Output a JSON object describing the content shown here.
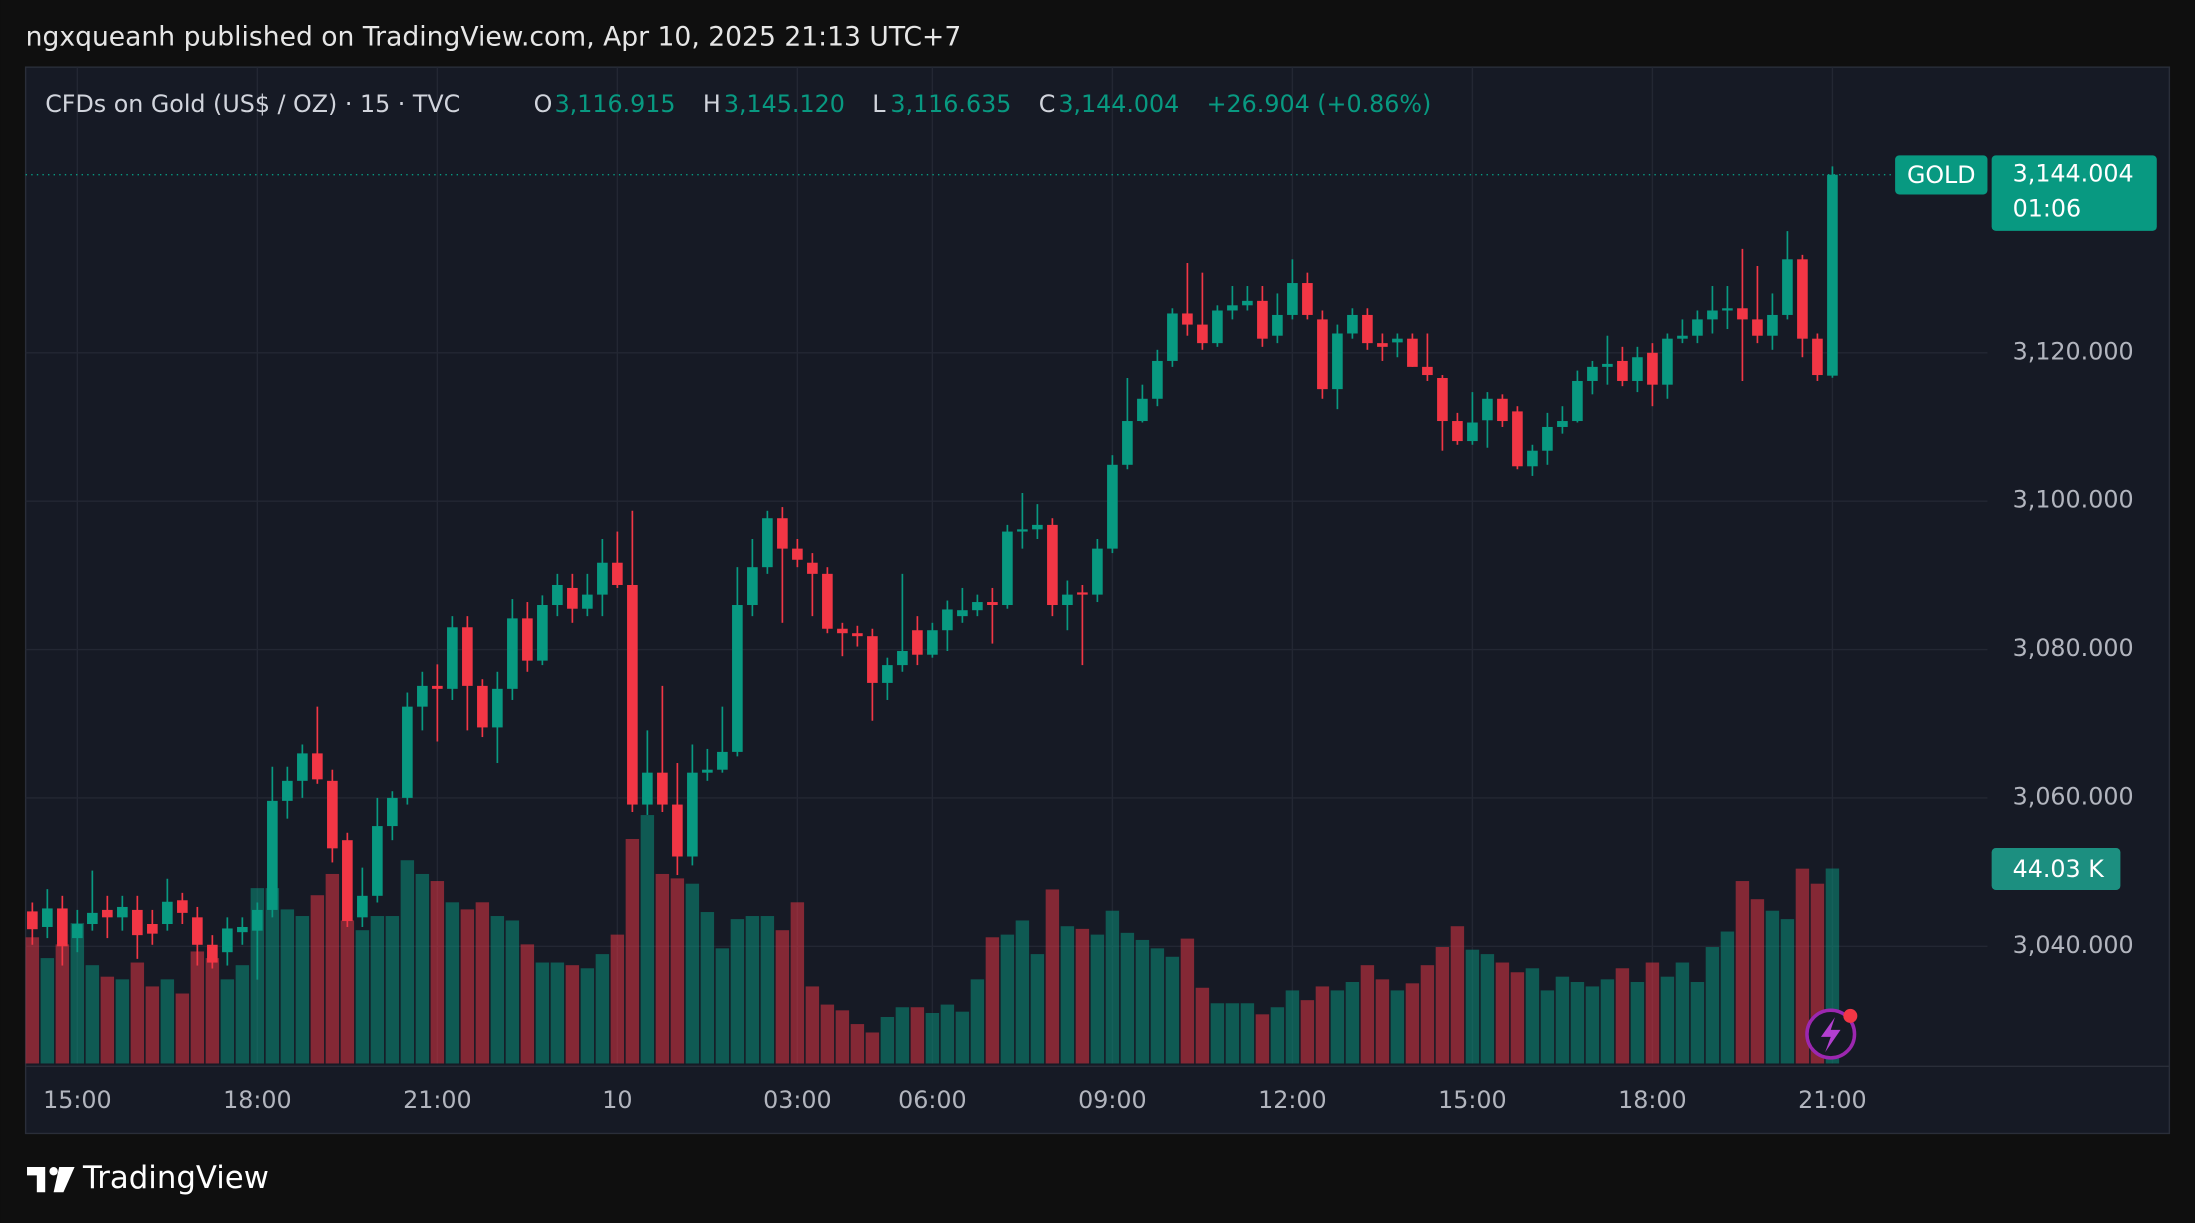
{
  "header": {
    "title": "ngxqueanh published on TradingView.com, Apr 10, 2025 21:13 UTC+7"
  },
  "footer": {
    "brand": "TradingView"
  },
  "chart_data": {
    "type": "candlestick",
    "legend": {
      "symbol": "CFDs on Gold (US$ / OZ) · 15 · TVC",
      "o": "O",
      "o_value": "3,116.915",
      "h": "H",
      "h_value": "3,145.120",
      "l": "L",
      "l_value": "3,116.635",
      "c": "C",
      "c_value": "3,144.004",
      "change": "+26.904 (+0.86%)"
    },
    "symbol_tag": "GOLD",
    "last_price_label": "3,144.004",
    "countdown": "01:06",
    "volume_label": "44.03 K",
    "up_color": "#089981",
    "down_color": "#f23645",
    "grid": true,
    "categories": [
      null,
      null,
      null,
      "15:00",
      null,
      null,
      null,
      null,
      null,
      null,
      null,
      null,
      null,
      null,
      null,
      "18:00",
      null,
      null,
      null,
      null,
      null,
      null,
      null,
      null,
      null,
      null,
      null,
      "21:00",
      null,
      null,
      null,
      null,
      null,
      null,
      null,
      null,
      null,
      null,
      null,
      "10",
      null,
      null,
      null,
      null,
      null,
      null,
      null,
      null,
      null,
      null,
      null,
      "03:00",
      null,
      null,
      null,
      null,
      null,
      null,
      null,
      null,
      "06:00",
      null,
      null,
      null,
      null,
      null,
      null,
      null,
      null,
      null,
      null,
      null,
      "09:00",
      null,
      null,
      null,
      null,
      null,
      null,
      null,
      null,
      null,
      null,
      null,
      "12:00",
      null,
      null,
      null,
      null,
      null,
      null,
      null,
      null,
      null,
      null,
      null,
      "15:00",
      null,
      null,
      null,
      null,
      null,
      null,
      null,
      null,
      null,
      null,
      null,
      "18:00",
      null,
      null,
      null,
      null,
      null,
      null,
      null,
      null,
      null,
      null,
      null,
      "21:00"
    ],
    "open": [
      3044.7,
      3042.6,
      3045.1,
      3041.1,
      3043.0,
      3044.9,
      3043.9,
      3044.9,
      3043.0,
      3043.0,
      3046.2,
      3043.9,
      3040.2,
      3039.2,
      3041.9,
      3042.1,
      3044.9,
      3059.6,
      3062.3,
      3066.0,
      3062.3,
      3054.3,
      3043.9,
      3046.8,
      3056.2,
      3060.0,
      3072.3,
      3075.1,
      3074.7,
      3083.0,
      3075.1,
      3069.5,
      3074.7,
      3084.2,
      3078.5,
      3086.0,
      3088.3,
      3085.5,
      3087.4,
      3091.7,
      3088.7,
      3059.1,
      3063.4,
      3059.1,
      3052.1,
      3063.4,
      3063.8,
      3066.2,
      3086.0,
      3091.1,
      3097.7,
      3093.6,
      3091.7,
      3090.2,
      3082.8,
      3082.2,
      3081.8,
      3075.5,
      3077.9,
      3082.6,
      3079.3,
      3082.6,
      3084.5,
      3085.3,
      3086.4,
      3086.0,
      3095.9,
      3096.2,
      3096.8,
      3086.0,
      3087.7,
      3087.4,
      3093.6,
      3104.9,
      3110.8,
      3113.8,
      3118.9,
      3125.3,
      3123.8,
      3121.3,
      3125.7,
      3126.4,
      3127.0,
      3122.3,
      3125.1,
      3129.4,
      3124.5,
      3115.1,
      3122.6,
      3125.1,
      3121.3,
      3121.4,
      3121.9,
      3118.1,
      3116.6,
      3110.8,
      3108.1,
      3110.9,
      3113.8,
      3112.1,
      3104.7,
      3106.8,
      3110.0,
      3110.8,
      3116.2,
      3118.1,
      3118.9,
      3116.2,
      3120.0,
      3115.7,
      3121.9,
      3122.3,
      3124.5,
      3125.7,
      3126.0,
      3124.5,
      3122.3,
      3125.1,
      3132.6,
      3121.9,
      3116.915
    ],
    "high": [
      3045.9,
      3047.7,
      3046.8,
      3044.9,
      3050.2,
      3046.8,
      3046.8,
      3046.8,
      3044.9,
      3049.1,
      3047.2,
      3045.3,
      3041.5,
      3043.9,
      3043.9,
      3045.9,
      3064.2,
      3064.2,
      3067.2,
      3072.3,
      3063.8,
      3055.3,
      3050.6,
      3060.0,
      3060.9,
      3074.2,
      3077.0,
      3078.0,
      3084.5,
      3084.5,
      3076.0,
      3077.0,
      3086.8,
      3086.4,
      3087.3,
      3090.2,
      3090.2,
      3090.2,
      3094.9,
      3095.9,
      3098.7,
      3069.1,
      3075.1,
      3064.7,
      3067.2,
      3066.6,
      3072.3,
      3091.1,
      3094.9,
      3098.7,
      3099.2,
      3094.9,
      3093.0,
      3091.1,
      3083.6,
      3083.2,
      3082.8,
      3078.9,
      3090.2,
      3084.5,
      3083.6,
      3086.6,
      3088.3,
      3087.4,
      3088.3,
      3096.8,
      3101.1,
      3099.6,
      3097.7,
      3089.3,
      3088.7,
      3094.9,
      3106.2,
      3116.6,
      3115.7,
      3120.4,
      3126.0,
      3132.1,
      3130.8,
      3126.4,
      3129.0,
      3129.0,
      3129.0,
      3128.0,
      3132.6,
      3130.8,
      3125.7,
      3123.8,
      3126.0,
      3126.0,
      3122.6,
      3122.6,
      3122.6,
      3122.6,
      3117.0,
      3111.9,
      3114.7,
      3114.7,
      3114.4,
      3112.8,
      3107.6,
      3111.9,
      3112.8,
      3117.6,
      3118.9,
      3122.3,
      3120.8,
      3120.8,
      3121.3,
      3122.6,
      3124.5,
      3125.7,
      3129.0,
      3129.0,
      3134.0,
      3131.7,
      3128.0,
      3136.4,
      3133.2,
      3122.6,
      3145.12
    ],
    "low": [
      3040.2,
      3041.1,
      3037.4,
      3039.2,
      3042.1,
      3041.1,
      3042.1,
      3038.3,
      3040.2,
      3042.1,
      3043.0,
      3037.4,
      3037.0,
      3037.4,
      3040.2,
      3035.5,
      3043.9,
      3057.2,
      3060.0,
      3061.9,
      3051.3,
      3042.6,
      3042.6,
      3045.9,
      3054.3,
      3059.1,
      3069.1,
      3067.6,
      3073.2,
      3069.1,
      3068.2,
      3064.7,
      3073.2,
      3077.0,
      3077.9,
      3084.5,
      3083.6,
      3084.5,
      3084.5,
      3088.3,
      3058.1,
      3057.7,
      3058.1,
      3049.6,
      3050.9,
      3062.3,
      3063.4,
      3065.6,
      3084.5,
      3090.2,
      3083.6,
      3091.1,
      3084.5,
      3082.2,
      3079.1,
      3080.4,
      3070.4,
      3073.2,
      3077.0,
      3077.9,
      3078.9,
      3079.8,
      3083.6,
      3084.5,
      3080.8,
      3085.5,
      3093.6,
      3094.9,
      3084.5,
      3082.6,
      3077.9,
      3086.4,
      3093.0,
      3104.3,
      3110.6,
      3112.8,
      3118.1,
      3122.3,
      3120.4,
      3120.8,
      3124.5,
      3125.7,
      3120.8,
      3121.3,
      3124.5,
      3124.5,
      3113.8,
      3112.4,
      3121.9,
      3120.4,
      3118.9,
      3119.4,
      3118.1,
      3116.2,
      3106.8,
      3107.6,
      3107.6,
      3107.2,
      3110.0,
      3104.3,
      3103.4,
      3104.9,
      3109.1,
      3110.6,
      3114.4,
      3115.7,
      3115.5,
      3114.7,
      3112.8,
      3113.8,
      3121.3,
      3121.3,
      3122.6,
      3123.2,
      3116.2,
      3121.3,
      3120.4,
      3124.5,
      3119.4,
      3116.2,
      3116.635
    ],
    "close": [
      3042.3,
      3045.1,
      3040.0,
      3043.0,
      3044.5,
      3043.9,
      3045.3,
      3041.5,
      3041.7,
      3046.0,
      3044.5,
      3040.2,
      3037.8,
      3042.4,
      3042.6,
      3044.9,
      3059.6,
      3062.3,
      3066.0,
      3062.5,
      3053.2,
      3043.4,
      3046.8,
      3056.2,
      3060.0,
      3072.3,
      3075.1,
      3074.7,
      3083.0,
      3075.1,
      3069.5,
      3074.7,
      3084.2,
      3078.5,
      3086.0,
      3088.7,
      3085.5,
      3087.4,
      3091.7,
      3088.7,
      3059.1,
      3063.4,
      3059.1,
      3052.1,
      3063.4,
      3063.8,
      3066.2,
      3086.0,
      3091.1,
      3097.7,
      3093.6,
      3092.1,
      3090.2,
      3082.8,
      3082.2,
      3081.8,
      3075.5,
      3077.9,
      3079.8,
      3079.3,
      3082.6,
      3085.4,
      3085.3,
      3086.4,
      3086.0,
      3095.9,
      3096.2,
      3096.8,
      3086.0,
      3087.4,
      3087.4,
      3093.6,
      3104.9,
      3110.8,
      3113.8,
      3118.9,
      3125.3,
      3123.8,
      3121.3,
      3125.7,
      3126.4,
      3127.0,
      3121.9,
      3125.1,
      3129.4,
      3125.1,
      3115.1,
      3122.6,
      3125.1,
      3121.3,
      3120.8,
      3121.9,
      3118.1,
      3117.0,
      3110.8,
      3108.1,
      3110.6,
      3113.8,
      3110.8,
      3104.7,
      3106.8,
      3110.0,
      3110.8,
      3116.2,
      3118.1,
      3118.5,
      3116.2,
      3119.4,
      3115.7,
      3121.9,
      3122.3,
      3124.5,
      3125.7,
      3126.0,
      3124.5,
      3122.3,
      3125.1,
      3132.6,
      3121.9,
      3117.0,
      3144.004
    ],
    "volume": [
      28.5,
      23.8,
      26.9,
      31.7,
      22.2,
      19.6,
      19.0,
      22.8,
      17.4,
      19.0,
      15.8,
      25.3,
      23.8,
      19.0,
      22.2,
      39.6,
      39.6,
      34.8,
      33.3,
      38.0,
      42.8,
      32.3,
      30.1,
      33.3,
      33.3,
      45.9,
      42.8,
      41.2,
      36.4,
      34.8,
      36.4,
      33.3,
      32.3,
      26.9,
      22.8,
      22.8,
      22.2,
      21.5,
      24.7,
      29.1,
      50.7,
      56.1,
      42.8,
      41.8,
      40.6,
      34.2,
      26.0,
      32.6,
      33.3,
      33.3,
      30.1,
      36.4,
      17.4,
      13.3,
      12.0,
      8.9,
      7.0,
      10.5,
      12.7,
      12.7,
      11.4,
      13.3,
      11.7,
      19.0,
      28.5,
      29.1,
      32.3,
      24.7,
      39.3,
      31.0,
      30.4,
      29.1,
      34.5,
      29.5,
      27.9,
      26.0,
      24.1,
      28.2,
      17.1,
      13.6,
      13.6,
      13.6,
      11.1,
      12.7,
      16.5,
      14.3,
      17.4,
      16.5,
      18.4,
      22.2,
      19.0,
      16.5,
      18.1,
      22.2,
      26.3,
      31.0,
      25.7,
      24.7,
      22.8,
      20.6,
      21.5,
      16.5,
      19.6,
      18.4,
      17.4,
      19.0,
      21.5,
      18.4,
      22.8,
      19.6,
      22.8,
      18.4,
      26.3,
      29.8,
      41.2,
      37.1,
      34.5,
      32.6,
      44.0,
      40.6,
      44.03
    ],
    "ylim": [
      3024.2,
      3158.5
    ],
    "yticks": [
      {
        "value": 3040,
        "label": "3,040.000"
      },
      {
        "value": 3060,
        "label": "3,060.000"
      },
      {
        "value": 3080,
        "label": "3,080.000"
      },
      {
        "value": 3100,
        "label": "3,100.000"
      },
      {
        "value": 3120,
        "label": "3,120.000"
      }
    ],
    "y2lim": [
      0,
      225
    ]
  }
}
